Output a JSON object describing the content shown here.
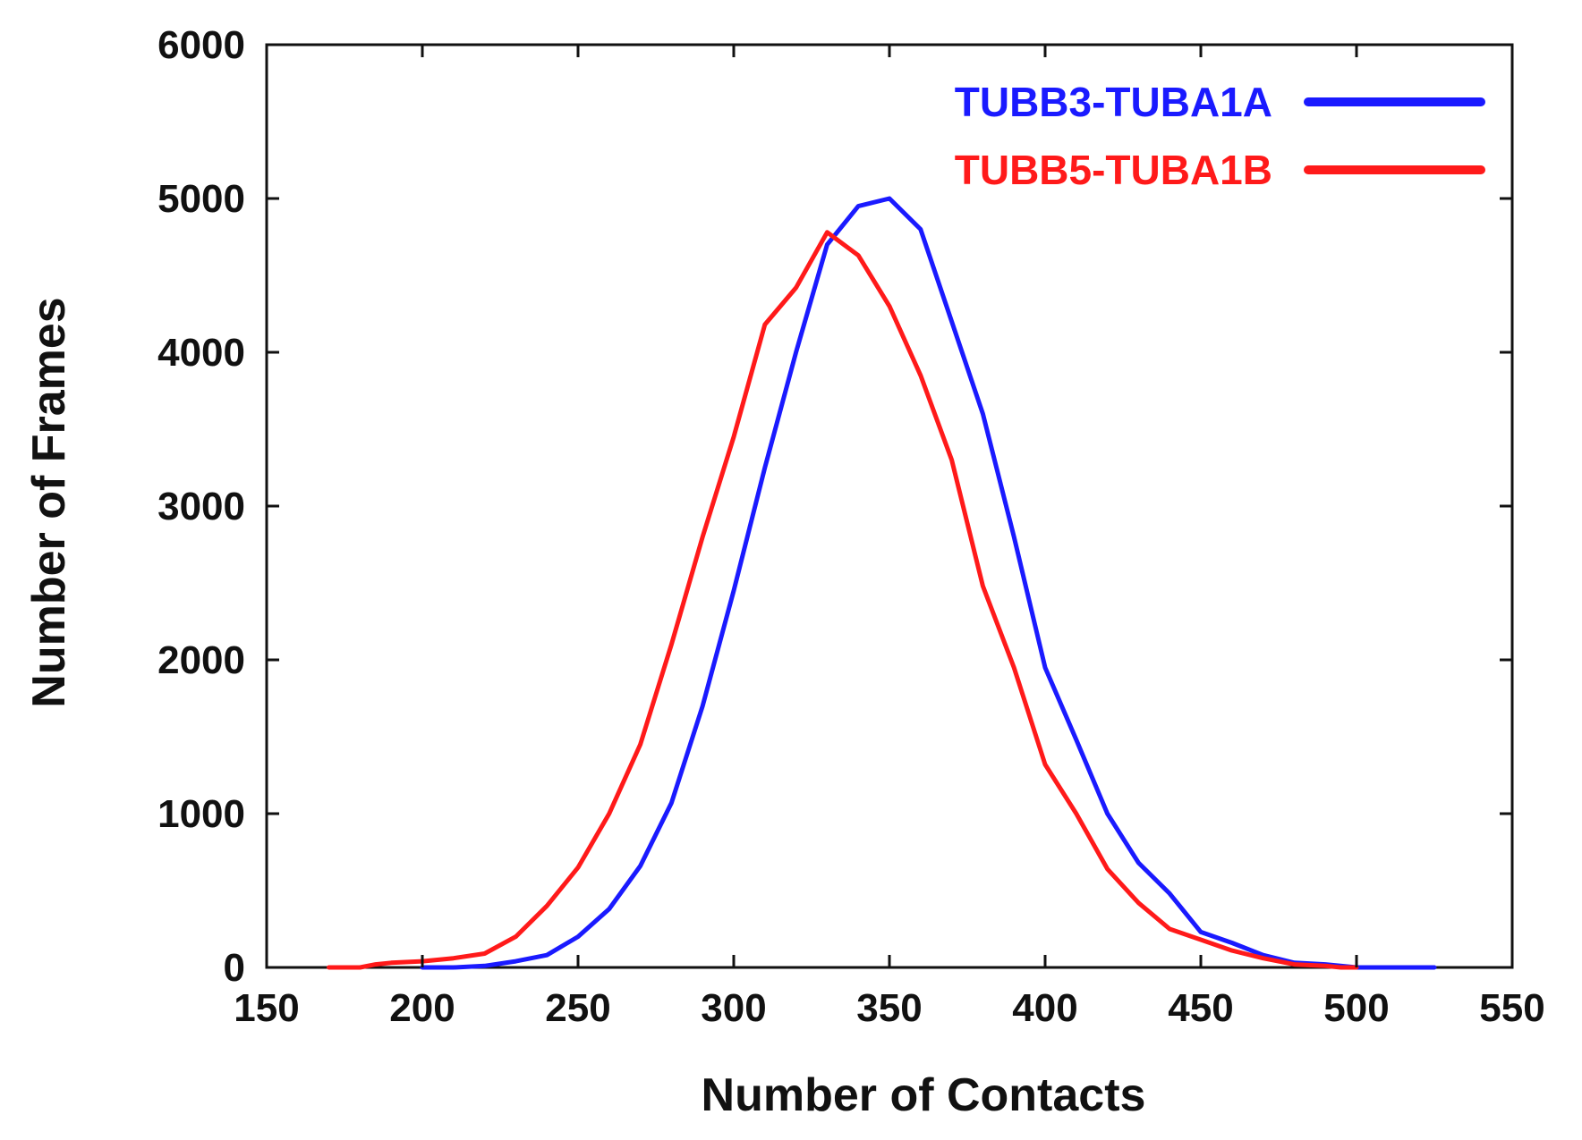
{
  "chart_data": {
    "type": "line",
    "xlabel": "Number of Contacts",
    "ylabel": "Number of Frames",
    "xlim": [
      150,
      550
    ],
    "ylim": [
      0,
      6000
    ],
    "xticks": [
      150,
      200,
      250,
      300,
      350,
      400,
      450,
      500,
      550
    ],
    "yticks": [
      0,
      1000,
      2000,
      3000,
      4000,
      5000,
      6000
    ],
    "grid": false,
    "legend_position": "top-right",
    "series": [
      {
        "name": "TUBB3-TUBA1A",
        "color": "#1a1aff",
        "points": [
          [
            200,
            0
          ],
          [
            210,
            0
          ],
          [
            220,
            10
          ],
          [
            230,
            40
          ],
          [
            240,
            80
          ],
          [
            250,
            200
          ],
          [
            260,
            380
          ],
          [
            270,
            660
          ],
          [
            280,
            1070
          ],
          [
            290,
            1700
          ],
          [
            300,
            2450
          ],
          [
            310,
            3250
          ],
          [
            320,
            4000
          ],
          [
            330,
            4700
          ],
          [
            340,
            4950
          ],
          [
            350,
            5000
          ],
          [
            360,
            4800
          ],
          [
            370,
            4200
          ],
          [
            380,
            3600
          ],
          [
            390,
            2800
          ],
          [
            400,
            1950
          ],
          [
            410,
            1480
          ],
          [
            420,
            1000
          ],
          [
            430,
            680
          ],
          [
            440,
            480
          ],
          [
            450,
            230
          ],
          [
            460,
            160
          ],
          [
            470,
            80
          ],
          [
            480,
            30
          ],
          [
            490,
            20
          ],
          [
            500,
            0
          ],
          [
            510,
            0
          ],
          [
            525,
            0
          ]
        ]
      },
      {
        "name": "TUBB5-TUBA1B",
        "color": "#ff1a1a",
        "points": [
          [
            170,
            0
          ],
          [
            180,
            0
          ],
          [
            185,
            20
          ],
          [
            190,
            30
          ],
          [
            200,
            40
          ],
          [
            210,
            60
          ],
          [
            220,
            90
          ],
          [
            230,
            200
          ],
          [
            240,
            400
          ],
          [
            250,
            650
          ],
          [
            260,
            1000
          ],
          [
            270,
            1450
          ],
          [
            280,
            2100
          ],
          [
            290,
            2800
          ],
          [
            300,
            3450
          ],
          [
            310,
            4180
          ],
          [
            320,
            4420
          ],
          [
            330,
            4780
          ],
          [
            340,
            4630
          ],
          [
            350,
            4300
          ],
          [
            360,
            3850
          ],
          [
            370,
            3300
          ],
          [
            380,
            2480
          ],
          [
            390,
            1950
          ],
          [
            400,
            1320
          ],
          [
            410,
            1000
          ],
          [
            420,
            640
          ],
          [
            430,
            420
          ],
          [
            440,
            250
          ],
          [
            450,
            180
          ],
          [
            460,
            110
          ],
          [
            470,
            60
          ],
          [
            480,
            20
          ],
          [
            490,
            10
          ],
          [
            495,
            0
          ],
          [
            500,
            0
          ]
        ]
      }
    ]
  }
}
